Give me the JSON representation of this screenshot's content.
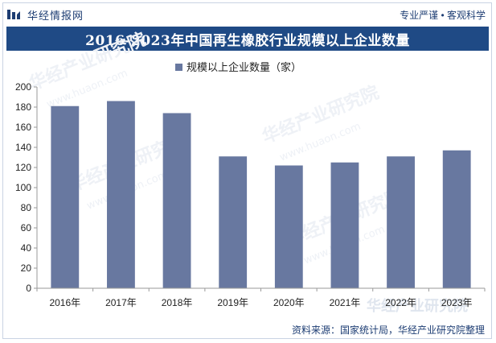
{
  "header": {
    "brand": "华经情报网",
    "tagline": "专业严谨 • 客观科学"
  },
  "chart_data": {
    "type": "bar",
    "title": "2016-2023年中国再生橡胶行业规模以上企业数量",
    "categories": [
      "2016年",
      "2017年",
      "2018年",
      "2019年",
      "2020年",
      "2021年",
      "2022年",
      "2023年"
    ],
    "series": [
      {
        "name": "规模以上企业数量（家）",
        "values": [
          181,
          186,
          174,
          131,
          122,
          125,
          131,
          137
        ]
      }
    ],
    "ylim": [
      0,
      200
    ],
    "yticks": [
      0,
      20,
      40,
      60,
      80,
      100,
      120,
      140,
      160,
      180,
      200
    ],
    "legend": "top",
    "grid": false,
    "colors": {
      "bar": "#6878a0",
      "axis": "#9a9a9a",
      "text": "#222222"
    }
  },
  "watermark": {
    "text": "华经产业研究院",
    "url": "www.huaon.com"
  },
  "footer": {
    "source": "资料来源：国家统计局，华经产业研究院整理"
  }
}
